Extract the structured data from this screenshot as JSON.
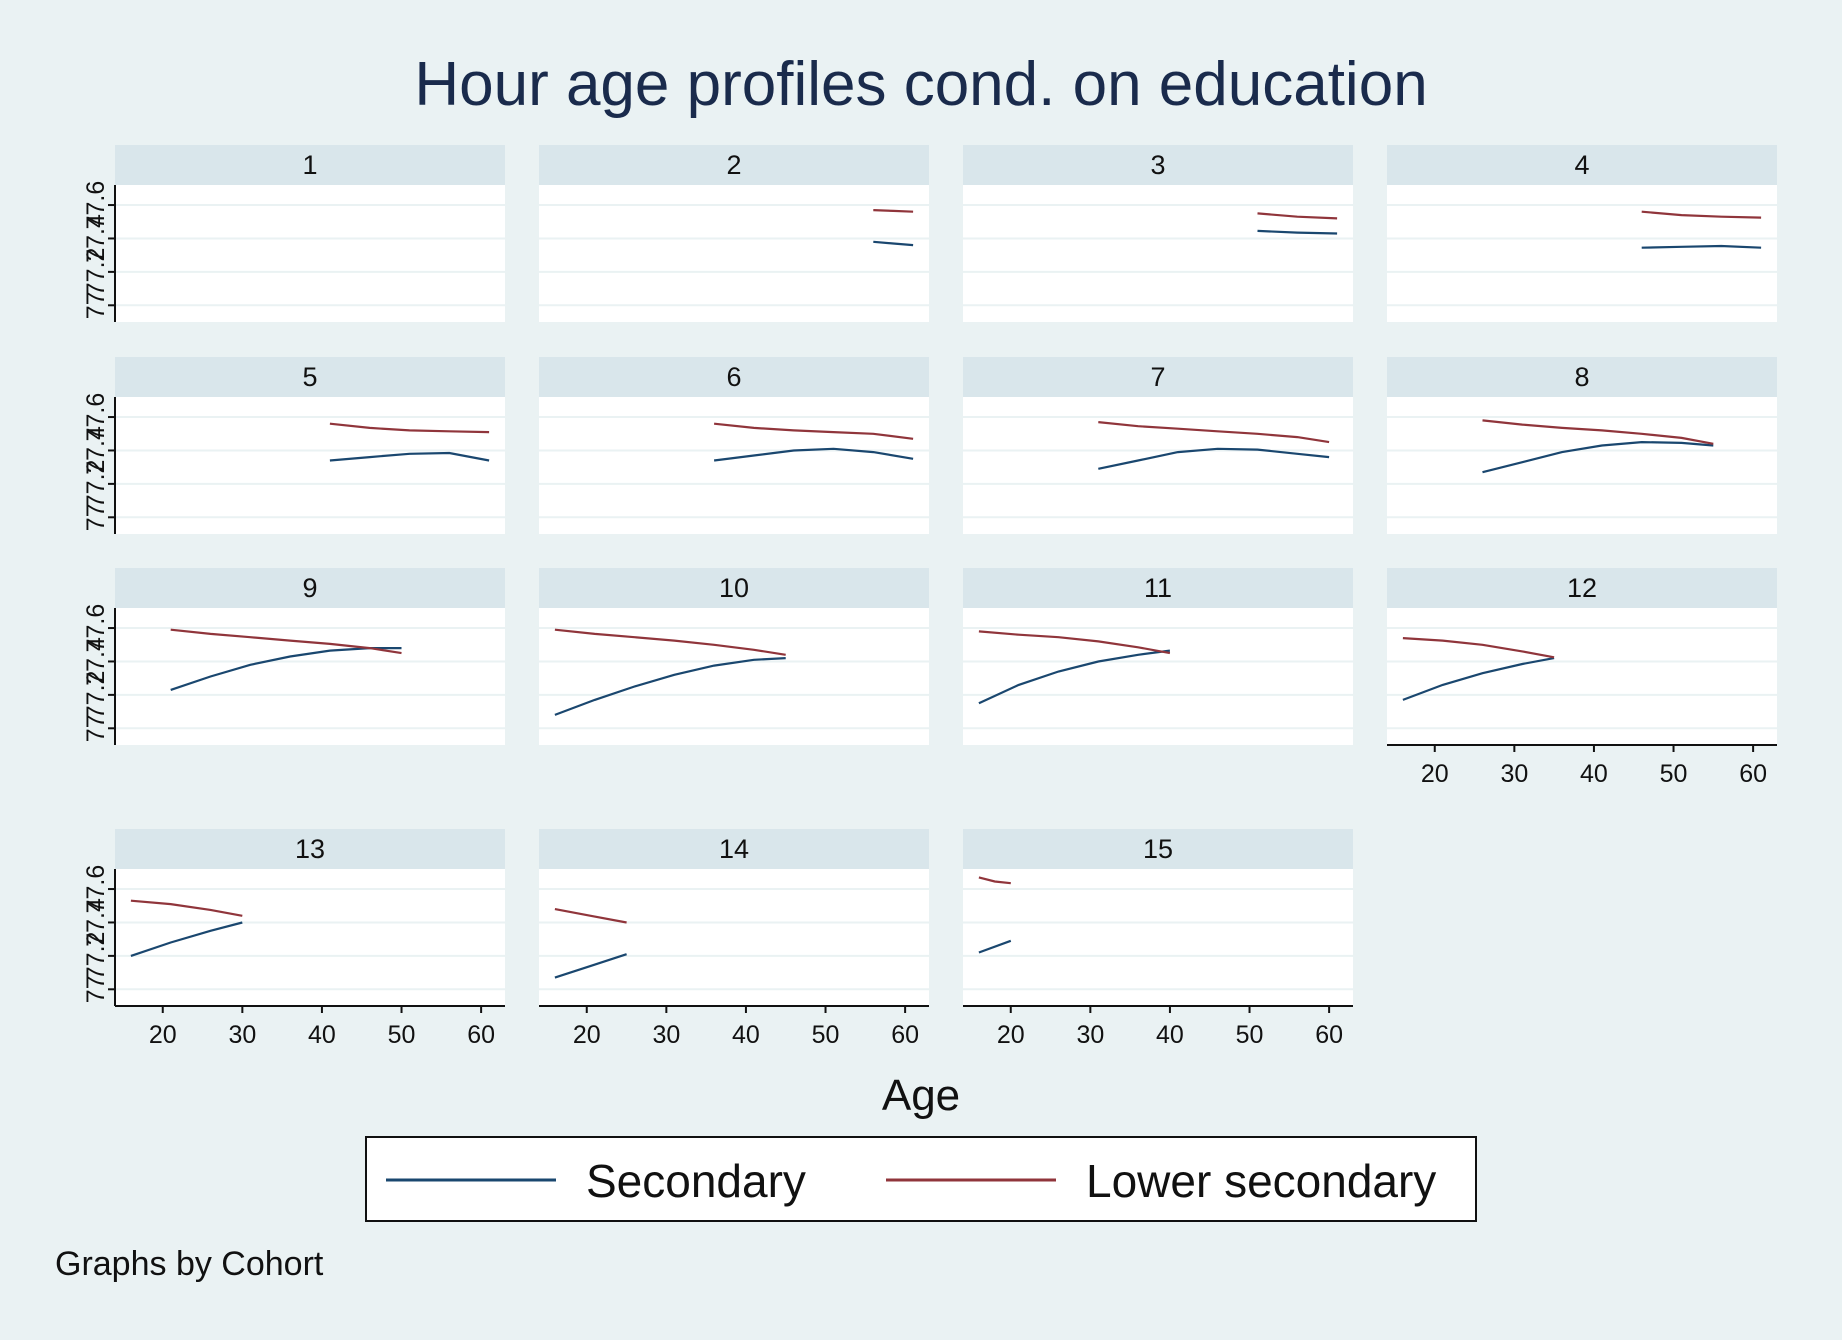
{
  "chart_data": {
    "type": "line",
    "title": "Hour age profiles cond. on education",
    "xlabel": "Age",
    "ylabel": "",
    "note": "Graphs by Cohort",
    "xlim": [
      14,
      63
    ],
    "ylim": [
      76.9,
      77.72
    ],
    "xticks": [
      20,
      30,
      40,
      50,
      60
    ],
    "yticks": [
      77,
      77.2,
      77.4,
      77.6
    ],
    "ytick_labels": [
      "77",
      "77.2",
      "77.4",
      "77.6"
    ],
    "grid": true,
    "legend_position": "bottom",
    "colors": {
      "Secondary": "#1a476f",
      "Lower secondary": "#90353b",
      "strip": "#d9e6eb",
      "background": "#eaf2f3",
      "plot": "#ffffff",
      "grid": "#eaf2f3"
    },
    "legend": [
      {
        "name": "Secondary",
        "color": "#1a476f"
      },
      {
        "name": "Lower secondary",
        "color": "#90353b"
      }
    ],
    "panels": [
      {
        "label": "1",
        "series": [
          {
            "name": "Secondary",
            "x": [],
            "y": []
          },
          {
            "name": "Lower secondary",
            "x": [],
            "y": []
          }
        ]
      },
      {
        "label": "2",
        "series": [
          {
            "name": "Secondary",
            "x": [
              56,
              58.5,
              61
            ],
            "y": [
              77.38,
              77.37,
              77.36
            ]
          },
          {
            "name": "Lower secondary",
            "x": [
              56,
              58.5,
              61
            ],
            "y": [
              77.57,
              77.565,
              77.56
            ]
          }
        ]
      },
      {
        "label": "3",
        "series": [
          {
            "name": "Secondary",
            "x": [
              51,
              56,
              61
            ],
            "y": [
              77.445,
              77.435,
              77.43
            ]
          },
          {
            "name": "Lower secondary",
            "x": [
              51,
              56,
              61
            ],
            "y": [
              77.55,
              77.53,
              77.52
            ]
          }
        ]
      },
      {
        "label": "4",
        "series": [
          {
            "name": "Secondary",
            "x": [
              46,
              51,
              56,
              61
            ],
            "y": [
              77.345,
              77.35,
              77.355,
              77.345
            ]
          },
          {
            "name": "Lower secondary",
            "x": [
              46,
              51,
              56,
              61
            ],
            "y": [
              77.56,
              77.54,
              77.53,
              77.525
            ]
          }
        ]
      },
      {
        "label": "5",
        "series": [
          {
            "name": "Secondary",
            "x": [
              41,
              46,
              51,
              56,
              61
            ],
            "y": [
              77.34,
              77.36,
              77.38,
              77.385,
              77.34
            ]
          },
          {
            "name": "Lower secondary",
            "x": [
              41,
              46,
              51,
              56,
              61
            ],
            "y": [
              77.56,
              77.535,
              77.52,
              77.515,
              77.51
            ]
          }
        ]
      },
      {
        "label": "6",
        "series": [
          {
            "name": "Secondary",
            "x": [
              36,
              41,
              46,
              51,
              56,
              61
            ],
            "y": [
              77.34,
              77.37,
              77.4,
              77.41,
              77.39,
              77.35
            ]
          },
          {
            "name": "Lower secondary",
            "x": [
              36,
              41,
              46,
              51,
              56,
              61
            ],
            "y": [
              77.56,
              77.535,
              77.52,
              77.51,
              77.5,
              77.47
            ]
          }
        ]
      },
      {
        "label": "7",
        "series": [
          {
            "name": "Secondary",
            "x": [
              31,
              36,
              41,
              46,
              51,
              56,
              60
            ],
            "y": [
              77.29,
              77.34,
              77.39,
              77.41,
              77.405,
              77.38,
              77.36
            ]
          },
          {
            "name": "Lower secondary",
            "x": [
              31,
              36,
              41,
              46,
              51,
              56,
              60
            ],
            "y": [
              77.57,
              77.545,
              77.53,
              77.515,
              77.5,
              77.48,
              77.45
            ]
          }
        ]
      },
      {
        "label": "8",
        "series": [
          {
            "name": "Secondary",
            "x": [
              26,
              31,
              36,
              41,
              46,
              51,
              55
            ],
            "y": [
              77.27,
              77.33,
              77.39,
              77.43,
              77.45,
              77.445,
              77.43
            ]
          },
          {
            "name": "Lower secondary",
            "x": [
              26,
              31,
              36,
              41,
              46,
              51,
              55
            ],
            "y": [
              77.58,
              77.555,
              77.535,
              77.52,
              77.5,
              77.475,
              77.44
            ]
          }
        ]
      },
      {
        "label": "9",
        "series": [
          {
            "name": "Secondary",
            "x": [
              21,
              26,
              31,
              36,
              41,
              46,
              50
            ],
            "y": [
              77.23,
              77.31,
              77.38,
              77.43,
              77.465,
              77.48,
              77.48
            ]
          },
          {
            "name": "Lower secondary",
            "x": [
              21,
              26,
              31,
              36,
              41,
              46,
              50
            ],
            "y": [
              77.59,
              77.565,
              77.545,
              77.525,
              77.505,
              77.48,
              77.45
            ]
          }
        ]
      },
      {
        "label": "10",
        "series": [
          {
            "name": "Secondary",
            "x": [
              16,
              21,
              26,
              31,
              36,
              41,
              45
            ],
            "y": [
              77.08,
              77.17,
              77.25,
              77.32,
              77.375,
              77.41,
              77.42
            ]
          },
          {
            "name": "Lower secondary",
            "x": [
              16,
              21,
              26,
              31,
              36,
              41,
              45
            ],
            "y": [
              77.59,
              77.565,
              77.545,
              77.525,
              77.5,
              77.47,
              77.44
            ]
          }
        ]
      },
      {
        "label": "11",
        "series": [
          {
            "name": "Secondary",
            "x": [
              16,
              21,
              26,
              31,
              36,
              40
            ],
            "y": [
              77.15,
              77.26,
              77.34,
              77.4,
              77.44,
              77.465
            ]
          },
          {
            "name": "Lower secondary",
            "x": [
              16,
              21,
              26,
              31,
              36,
              40
            ],
            "y": [
              77.58,
              77.56,
              77.545,
              77.52,
              77.485,
              77.45
            ]
          }
        ]
      },
      {
        "label": "12",
        "series": [
          {
            "name": "Secondary",
            "x": [
              16,
              21,
              26,
              31,
              35
            ],
            "y": [
              77.17,
              77.26,
              77.33,
              77.385,
              77.42
            ]
          },
          {
            "name": "Lower secondary",
            "x": [
              16,
              21,
              26,
              31,
              35
            ],
            "y": [
              77.54,
              77.525,
              77.5,
              77.46,
              77.425
            ]
          }
        ]
      },
      {
        "label": "13",
        "series": [
          {
            "name": "Secondary",
            "x": [
              16,
              21,
              26,
              30
            ],
            "y": [
              77.2,
              77.28,
              77.35,
              77.4
            ]
          },
          {
            "name": "Lower secondary",
            "x": [
              16,
              21,
              26,
              30
            ],
            "y": [
              77.53,
              77.51,
              77.475,
              77.44
            ]
          }
        ]
      },
      {
        "label": "14",
        "series": [
          {
            "name": "Secondary",
            "x": [
              16,
              20.5,
              25
            ],
            "y": [
              77.07,
              77.14,
              77.21
            ]
          },
          {
            "name": "Lower secondary",
            "x": [
              16,
              20.5,
              25
            ],
            "y": [
              77.48,
              77.44,
              77.4
            ]
          }
        ]
      },
      {
        "label": "15",
        "series": [
          {
            "name": "Secondary",
            "x": [
              16,
              20
            ],
            "y": [
              77.22,
              77.29
            ]
          },
          {
            "name": "Lower secondary",
            "x": [
              16,
              18,
              20
            ],
            "y": [
              77.67,
              77.645,
              77.635
            ]
          }
        ]
      }
    ]
  }
}
